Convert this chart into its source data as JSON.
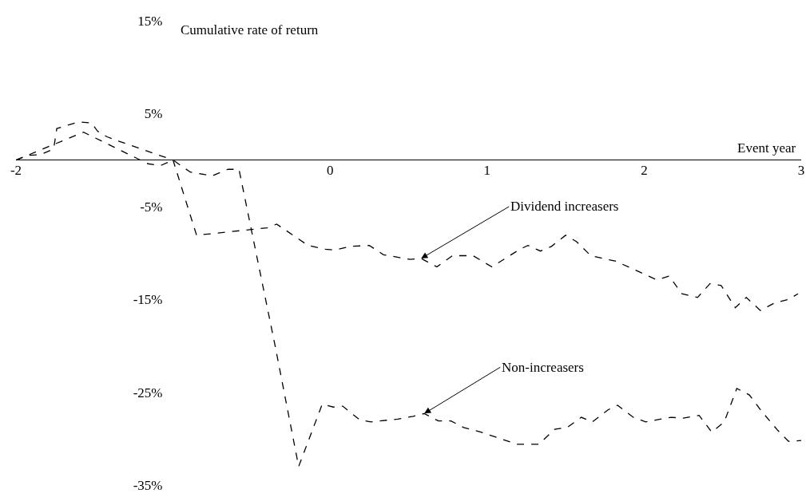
{
  "chart_data": {
    "type": "line",
    "xlabel": "Event year",
    "ylabel": "Cumulative rate of return",
    "xlim": [
      -2,
      3
    ],
    "xticks": [
      -2,
      0,
      1,
      2,
      3
    ],
    "ylim": [
      -35,
      15
    ],
    "yticks": [
      {
        "value": 15,
        "label": "15%"
      },
      {
        "value": 5,
        "label": "5%"
      },
      {
        "value": -5,
        "label": "-5%"
      },
      {
        "value": -15,
        "label": "-15%"
      },
      {
        "value": -25,
        "label": "-25%"
      },
      {
        "value": -35,
        "label": "-35%"
      }
    ],
    "grid": false,
    "marker": "none",
    "line_style": "dashed",
    "series": [
      {
        "color": "#000000",
        "x": [
          -2,
          -1.92,
          -1.84,
          -1.76,
          -1.74,
          -1.6,
          -1.52,
          -1.48,
          -1.42,
          -1.34,
          -1.0,
          -0.85,
          -0.4,
          -0.34,
          -0.14,
          -0.03,
          0.03,
          0.13,
          0.25,
          0.34,
          0.51,
          0.58,
          0.68,
          0.78,
          0.91,
          1.03,
          1.21,
          1.26,
          1.34,
          1.41,
          1.5,
          1.57,
          1.66,
          1.82,
          2.08,
          2.16,
          2.24,
          2.34,
          2.42,
          2.49,
          2.58,
          2.65,
          2.74,
          2.83,
          2.92,
          2.98
        ],
        "values": [
          0,
          0.5,
          0.6,
          1.2,
          3.4,
          4.1,
          4,
          3.1,
          2.5,
          2,
          0,
          -8.1,
          -7.3,
          -6.9,
          -9.2,
          -9.6,
          -9.7,
          -9.3,
          -9.2,
          -10.2,
          -10.7,
          -10.6,
          -11.5,
          -10.3,
          -10.3,
          -11.5,
          -9.6,
          -9.2,
          -9.8,
          -9.3,
          -8.1,
          -8.8,
          -10.3,
          -10.9,
          -12.9,
          -12.5,
          -14.4,
          -14.8,
          -13.3,
          -13.5,
          -15.9,
          -14.8,
          -16.2,
          -15.4,
          -15,
          -14.4
        ]
      },
      {
        "color": "#000000",
        "x": [
          -2,
          -1.57,
          -1.16,
          -1.08,
          -1.0,
          -0.89,
          -0.75,
          -0.65,
          -0.58,
          -0.35,
          -0.2,
          -0.05,
          0.02,
          0.08,
          0.19,
          0.26,
          0.43,
          0.53,
          0.6,
          0.69,
          0.77,
          0.85,
          0.96,
          1.19,
          1.33,
          1.43,
          1.51,
          1.6,
          1.67,
          1.77,
          1.83,
          1.93,
          2.01,
          2.17,
          2.25,
          2.35,
          2.43,
          2.51,
          2.59,
          2.67,
          2.75,
          2.85,
          2.92,
          3.0
        ],
        "values": [
          0,
          3,
          -0.4,
          -0.6,
          0,
          -1.3,
          -1.7,
          -1,
          -1,
          -20,
          -33,
          -26.3,
          -26.6,
          -26.5,
          -28,
          -28.2,
          -27.9,
          -27.6,
          -27.3,
          -28.1,
          -28.1,
          -28.8,
          -29.3,
          -30.6,
          -30.6,
          -29,
          -28.8,
          -27.7,
          -28.2,
          -26.9,
          -26.4,
          -27.7,
          -28.2,
          -27.7,
          -27.8,
          -27.5,
          -29.3,
          -28.2,
          -24.6,
          -25.3,
          -27.1,
          -29.1,
          -30.3,
          -30.2
        ]
      }
    ],
    "annotations": [
      {
        "text": "Dividend increasers",
        "x": 0.58,
        "y": -10.6
      },
      {
        "text": "Non-increasers",
        "x": 0.6,
        "y": -27.3
      }
    ]
  }
}
